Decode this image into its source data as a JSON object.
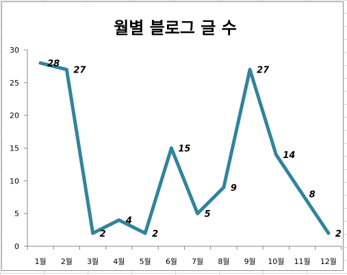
{
  "chart_data": {
    "type": "line",
    "title": "월별 블로그 글 수",
    "xlabel": "",
    "ylabel": "",
    "categories": [
      "1월",
      "2월",
      "3월",
      "4월",
      "5월",
      "6월",
      "7월",
      "8월",
      "9월",
      "10월",
      "11월",
      "12월"
    ],
    "series": [
      {
        "values": [
          28,
          27,
          2,
          4,
          2,
          15,
          5,
          9,
          27,
          14,
          8,
          2
        ],
        "color": "#31849b"
      }
    ],
    "ylim": [
      0,
      30
    ],
    "yticks": [
      0,
      5,
      10,
      15,
      20,
      25,
      30
    ],
    "data_labels": true,
    "legend": "none",
    "grid": false
  }
}
